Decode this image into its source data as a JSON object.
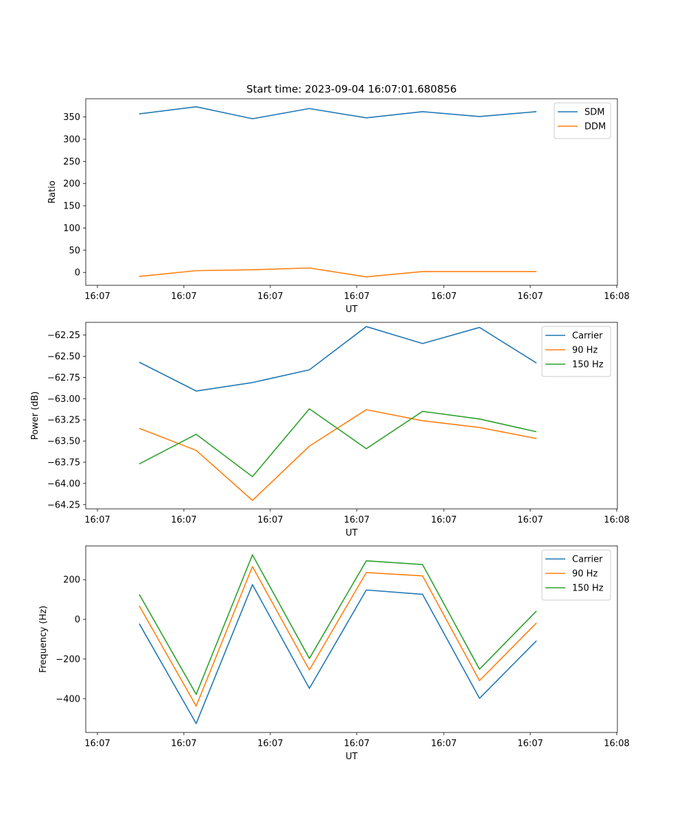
{
  "chart_data": [
    {
      "type": "line",
      "title": "Start time: 2023-09-04 16:07:01.680856",
      "xlabel": "UT",
      "ylabel": "Ratio",
      "xtick_labels": [
        "16:07",
        "16:07",
        "16:07",
        "16:07",
        "16:07",
        "16:07",
        "16:07"
      ],
      "xtick_last_label": "16:08",
      "ylim": [
        -29,
        391
      ],
      "yticks": [
        0,
        50,
        100,
        150,
        200,
        250,
        300,
        350
      ],
      "ytick_labels": [
        "0",
        "50",
        "100",
        "150",
        "200",
        "250",
        "300",
        "350"
      ],
      "legend_position": "upper-right",
      "series": [
        {
          "name": "SDM",
          "color": "#1f77b4",
          "values": [
            357,
            373,
            346,
            369,
            348,
            362,
            351,
            362
          ]
        },
        {
          "name": "DDM",
          "color": "#ff7f0e",
          "values": [
            -9,
            4,
            6,
            10,
            -10,
            2,
            2,
            2
          ]
        }
      ]
    },
    {
      "type": "line",
      "title": "",
      "xlabel": "UT",
      "ylabel": "Power (dB)",
      "xtick_labels": [
        "16:07",
        "16:07",
        "16:07",
        "16:07",
        "16:07",
        "16:07",
        "16:07"
      ],
      "xtick_last_label": "16:08",
      "ylim": [
        -64.3,
        -62.1
      ],
      "yticks": [
        -64.25,
        -64.0,
        -63.75,
        -63.5,
        -63.25,
        -63.0,
        -62.75,
        -62.5,
        -62.25
      ],
      "ytick_labels": [
        "−64.25",
        "−64.00",
        "−63.75",
        "−63.50",
        "−63.25",
        "−63.00",
        "−62.75",
        "−62.50",
        "−62.25"
      ],
      "legend_position": "upper-right",
      "series": [
        {
          "name": "Carrier",
          "color": "#1f77b4",
          "values": [
            -62.57,
            -62.91,
            -62.81,
            -62.66,
            -62.15,
            -62.35,
            -62.16,
            -62.58
          ]
        },
        {
          "name": "90 Hz",
          "color": "#ff7f0e",
          "values": [
            -63.35,
            -63.61,
            -64.2,
            -63.56,
            -63.13,
            -63.26,
            -63.34,
            -63.47
          ]
        },
        {
          "name": "150 Hz",
          "color": "#2ca02c",
          "values": [
            -63.77,
            -63.42,
            -63.92,
            -63.12,
            -63.59,
            -63.15,
            -63.24,
            -63.39
          ]
        }
      ]
    },
    {
      "type": "line",
      "title": "",
      "xlabel": "UT",
      "ylabel": "Frequency (Hz)",
      "xtick_labels": [
        "16:07",
        "16:07",
        "16:07",
        "16:07",
        "16:07",
        "16:07",
        "16:07"
      ],
      "xtick_last_label": "16:08",
      "ylim": [
        -570,
        370
      ],
      "yticks": [
        -400,
        -200,
        0,
        200
      ],
      "ytick_labels": [
        "−400",
        "−200",
        "0",
        "200"
      ],
      "legend_position": "upper-right",
      "series": [
        {
          "name": "Carrier",
          "color": "#1f77b4",
          "values": [
            -22,
            -525,
            175,
            -348,
            148,
            126,
            -398,
            -108
          ]
        },
        {
          "name": "90 Hz",
          "color": "#ff7f0e",
          "values": [
            68,
            -437,
            266,
            -255,
            236,
            219,
            -309,
            -18
          ]
        },
        {
          "name": "150 Hz",
          "color": "#2ca02c",
          "values": [
            126,
            -378,
            325,
            -197,
            295,
            276,
            -251,
            42
          ]
        }
      ]
    }
  ]
}
